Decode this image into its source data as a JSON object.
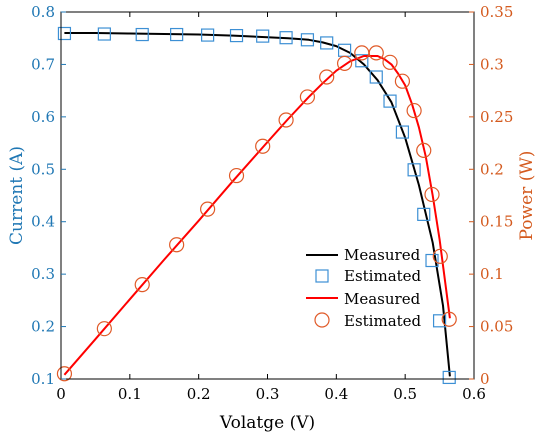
{
  "chart_data": {
    "type": "line",
    "xlabel": "Volatge (V)",
    "ylabel_left": "Current (A)",
    "ylabel_right": "Power (W)",
    "xlim": [
      0,
      0.6
    ],
    "ylim_left": [
      0.1,
      0.8
    ],
    "ylim_right": [
      0,
      0.35
    ],
    "x_ticks": [
      0,
      0.1,
      0.2,
      0.3,
      0.4,
      0.5,
      0.6
    ],
    "y_left_ticks": [
      0.1,
      0.2,
      0.3,
      0.4,
      0.5,
      0.6,
      0.7,
      0.8
    ],
    "y_right_ticks": [
      0,
      0.05,
      0.1,
      0.15,
      0.2,
      0.25,
      0.3,
      0.35
    ],
    "grid": false,
    "legend_position": "lower-right",
    "colors": {
      "left_axis": "#1f77b4",
      "right_axis": "#d45a1e",
      "current_line": "#000000",
      "current_marker": "#3c8fd4",
      "power_line": "#ff0000",
      "power_marker": "#e05a28"
    },
    "series": [
      {
        "name": "Measured",
        "axis": "left",
        "kind": "line",
        "x": [
          0.005,
          0.05,
          0.1,
          0.15,
          0.2,
          0.25,
          0.3,
          0.33,
          0.36,
          0.38,
          0.4,
          0.42,
          0.44,
          0.46,
          0.48,
          0.5,
          0.52,
          0.54,
          0.555,
          0.565
        ],
        "y": [
          0.76,
          0.76,
          0.759,
          0.758,
          0.757,
          0.755,
          0.752,
          0.75,
          0.747,
          0.742,
          0.735,
          0.722,
          0.7,
          0.67,
          0.628,
          0.56,
          0.47,
          0.36,
          0.24,
          0.105
        ]
      },
      {
        "name": "Estimated",
        "axis": "left",
        "kind": "marker",
        "marker": "square",
        "x": [
          0.005,
          0.063,
          0.118,
          0.168,
          0.213,
          0.255,
          0.293,
          0.327,
          0.358,
          0.386,
          0.412,
          0.437,
          0.458,
          0.478,
          0.496,
          0.513,
          0.527,
          0.539,
          0.55,
          0.564
        ],
        "y": [
          0.759,
          0.758,
          0.757,
          0.757,
          0.756,
          0.755,
          0.754,
          0.751,
          0.747,
          0.741,
          0.727,
          0.707,
          0.676,
          0.63,
          0.571,
          0.499,
          0.414,
          0.326,
          0.211,
          0.103
        ]
      },
      {
        "name": "Measured",
        "axis": "right",
        "kind": "line",
        "x": [
          0.005,
          0.05,
          0.1,
          0.15,
          0.2,
          0.25,
          0.3,
          0.33,
          0.36,
          0.38,
          0.4,
          0.42,
          0.44,
          0.46,
          0.47,
          0.48,
          0.49,
          0.5,
          0.51,
          0.52,
          0.53,
          0.54,
          0.55,
          0.565
        ],
        "y": [
          0.004,
          0.038,
          0.076,
          0.114,
          0.151,
          0.189,
          0.226,
          0.248,
          0.269,
          0.282,
          0.294,
          0.303,
          0.308,
          0.308,
          0.305,
          0.3,
          0.291,
          0.28,
          0.262,
          0.24,
          0.212,
          0.175,
          0.133,
          0.058
        ]
      },
      {
        "name": "Estimated",
        "axis": "right",
        "kind": "marker",
        "marker": "circle",
        "x": [
          0.005,
          0.063,
          0.118,
          0.168,
          0.213,
          0.255,
          0.293,
          0.327,
          0.358,
          0.386,
          0.412,
          0.437,
          0.458,
          0.478,
          0.496,
          0.513,
          0.527,
          0.539,
          0.551,
          0.564
        ],
        "y": [
          0.005,
          0.048,
          0.09,
          0.128,
          0.162,
          0.194,
          0.222,
          0.247,
          0.269,
          0.288,
          0.301,
          0.311,
          0.311,
          0.302,
          0.284,
          0.256,
          0.218,
          0.176,
          0.117,
          0.057
        ]
      }
    ]
  }
}
